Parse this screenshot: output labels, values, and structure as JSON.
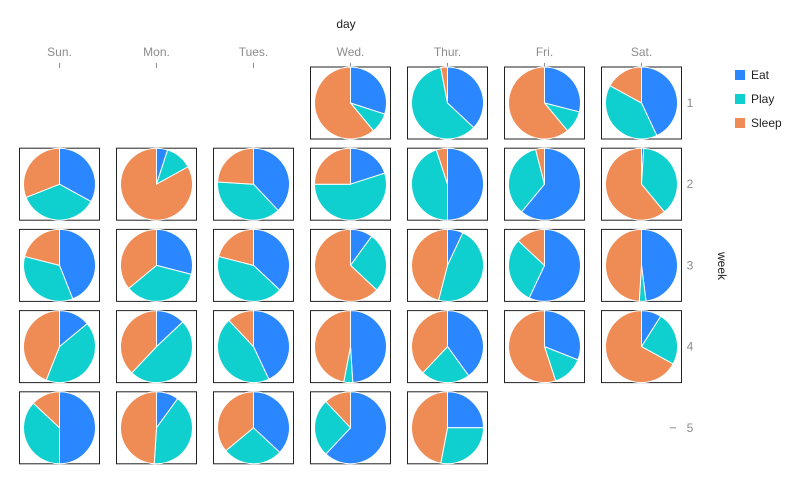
{
  "chart_data": {
    "type": "pie",
    "facet": "calendar",
    "xlabel": "day",
    "ylabel": "week",
    "days": [
      "Sun.",
      "Mon.",
      "Tues.",
      "Wed.",
      "Thur.",
      "Fri.",
      "Sat."
    ],
    "weeks": [
      "1",
      "2",
      "3",
      "4",
      "5"
    ],
    "categories": [
      "Eat",
      "Play",
      "Sleep"
    ],
    "colors": {
      "Eat": "#2b87ff",
      "Play": "#0fcfcf",
      "Sleep": "#ef8c55"
    },
    "legend_position": "right",
    "cells": [
      {
        "week": "1",
        "day": "Wed.",
        "values": [
          0.3,
          0.09,
          0.61
        ]
      },
      {
        "week": "1",
        "day": "Thur.",
        "values": [
          0.37,
          0.6,
          0.03
        ]
      },
      {
        "week": "1",
        "day": "Fri.",
        "values": [
          0.29,
          0.1,
          0.61
        ]
      },
      {
        "week": "1",
        "day": "Sat.",
        "values": [
          0.43,
          0.4,
          0.17
        ]
      },
      {
        "week": "2",
        "day": "Sun.",
        "values": [
          0.33,
          0.36,
          0.31
        ]
      },
      {
        "week": "2",
        "day": "Mon.",
        "values": [
          0.05,
          0.12,
          0.83
        ]
      },
      {
        "week": "2",
        "day": "Tues.",
        "values": [
          0.38,
          0.38,
          0.24
        ]
      },
      {
        "week": "2",
        "day": "Wed.",
        "values": [
          0.2,
          0.55,
          0.25
        ]
      },
      {
        "week": "2",
        "day": "Thur.",
        "values": [
          0.5,
          0.45,
          0.05
        ]
      },
      {
        "week": "2",
        "day": "Fri.",
        "values": [
          0.61,
          0.35,
          0.04
        ]
      },
      {
        "week": "2",
        "day": "Sat.",
        "values": [
          0.01,
          0.38,
          0.61
        ]
      },
      {
        "week": "3",
        "day": "Sun.",
        "values": [
          0.44,
          0.35,
          0.21
        ]
      },
      {
        "week": "3",
        "day": "Mon.",
        "values": [
          0.29,
          0.35,
          0.36
        ]
      },
      {
        "week": "3",
        "day": "Tues.",
        "values": [
          0.37,
          0.42,
          0.21
        ]
      },
      {
        "week": "3",
        "day": "Wed.",
        "values": [
          0.1,
          0.27,
          0.63
        ]
      },
      {
        "week": "3",
        "day": "Thur.",
        "values": [
          0.07,
          0.47,
          0.46
        ]
      },
      {
        "week": "3",
        "day": "Fri.",
        "values": [
          0.57,
          0.3,
          0.13
        ]
      },
      {
        "week": "3",
        "day": "Sat.",
        "values": [
          0.48,
          0.03,
          0.49
        ]
      },
      {
        "week": "4",
        "day": "Sun.",
        "values": [
          0.14,
          0.42,
          0.44
        ]
      },
      {
        "week": "4",
        "day": "Mon.",
        "values": [
          0.13,
          0.49,
          0.38
        ]
      },
      {
        "week": "4",
        "day": "Tues.",
        "values": [
          0.43,
          0.45,
          0.12
        ]
      },
      {
        "week": "4",
        "day": "Wed.",
        "values": [
          0.49,
          0.04,
          0.47
        ]
      },
      {
        "week": "4",
        "day": "Thur.",
        "values": [
          0.4,
          0.22,
          0.38
        ]
      },
      {
        "week": "4",
        "day": "Fri.",
        "values": [
          0.31,
          0.14,
          0.55
        ]
      },
      {
        "week": "4",
        "day": "Sat.",
        "values": [
          0.09,
          0.24,
          0.67
        ]
      },
      {
        "week": "5",
        "day": "Sun.",
        "values": [
          0.5,
          0.37,
          0.13
        ]
      },
      {
        "week": "5",
        "day": "Mon.",
        "values": [
          0.1,
          0.41,
          0.49
        ]
      },
      {
        "week": "5",
        "day": "Tues.",
        "values": [
          0.37,
          0.27,
          0.36
        ]
      },
      {
        "week": "5",
        "day": "Wed.",
        "values": [
          0.62,
          0.26,
          0.12
        ]
      },
      {
        "week": "5",
        "day": "Thur.",
        "values": [
          0.25,
          0.28,
          0.47
        ]
      }
    ]
  }
}
